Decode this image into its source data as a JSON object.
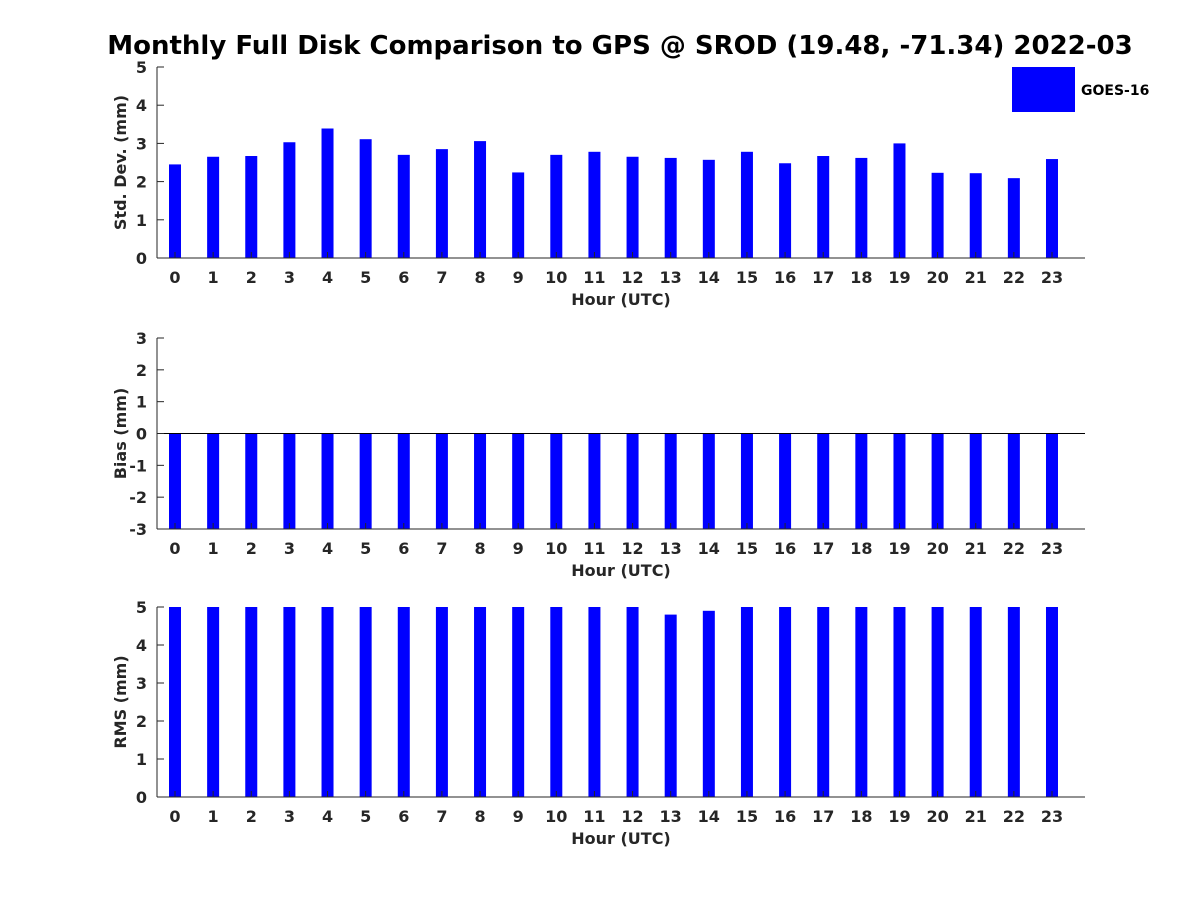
{
  "chart_data": {
    "type": "bar",
    "title": "Monthly Full Disk Comparison to GPS @ SROD (19.48, -71.34) 2022-03",
    "legend": {
      "label": "GOES-16",
      "color": "#0000ff",
      "placement": "top-right"
    },
    "categories": [
      "0",
      "1",
      "2",
      "3",
      "4",
      "5",
      "6",
      "7",
      "8",
      "9",
      "10",
      "11",
      "12",
      "13",
      "14",
      "15",
      "16",
      "17",
      "18",
      "19",
      "20",
      "21",
      "22",
      "23"
    ],
    "panels": [
      {
        "id": "std",
        "ylabel": "Std. Dev. (mm)",
        "xlabel": "Hour (UTC)",
        "ylim": [
          0,
          5
        ],
        "yticks": [
          "0",
          "1",
          "2",
          "3",
          "4",
          "5"
        ],
        "series": [
          {
            "name": "GOES-16",
            "values": [
              2.45,
              2.65,
              2.67,
              3.03,
              3.39,
              3.11,
              2.7,
              2.85,
              3.06,
              2.24,
              2.7,
              2.78,
              2.65,
              2.62,
              2.57,
              2.78,
              2.48,
              2.67,
              2.62,
              3.0,
              2.23,
              2.22,
              2.09,
              2.59
            ]
          }
        ]
      },
      {
        "id": "bias",
        "ylabel": "Bias (mm)",
        "xlabel": "Hour (UTC)",
        "ylim": [
          -3,
          3
        ],
        "yticks": [
          "-3",
          "-2",
          "-1",
          "0",
          "1",
          "2",
          "3"
        ],
        "series": [
          {
            "name": "GOES-16",
            "values": [
              -3,
              -3,
              -3,
              -3,
              -3,
              -3,
              -3,
              -3,
              -3,
              -3,
              -3,
              -3,
              -3,
              -3,
              -3,
              -3,
              -3,
              -3,
              -3,
              -3,
              -3,
              -3,
              -3,
              -3
            ]
          }
        ]
      },
      {
        "id": "rms",
        "ylabel": "RMS (mm)",
        "xlabel": "Hour (UTC)",
        "ylim": [
          0,
          5
        ],
        "yticks": [
          "0",
          "1",
          "2",
          "3",
          "4",
          "5"
        ],
        "series": [
          {
            "name": "GOES-16",
            "values": [
              5,
              5,
              5,
              5,
              5,
              5,
              5,
              5,
              5,
              5,
              5,
              5,
              5,
              4.8,
              4.9,
              5,
              5,
              5,
              5,
              5,
              5,
              5,
              5,
              5
            ]
          }
        ]
      }
    ]
  }
}
